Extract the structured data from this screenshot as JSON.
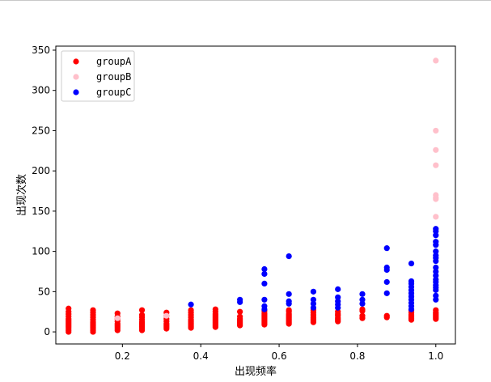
{
  "chart_data": {
    "type": "scatter",
    "title": "",
    "xlabel": "出现频率",
    "ylabel": "出现次数",
    "xlim": [
      0.03,
      1.05
    ],
    "ylim": [
      -15,
      355
    ],
    "xticks": [
      0.2,
      0.4,
      0.6,
      0.8,
      1.0
    ],
    "xtick_labels": [
      "0.2",
      "0.4",
      "0.6",
      "0.8",
      "1.0"
    ],
    "yticks": [
      0,
      50,
      100,
      150,
      200,
      250,
      300,
      350
    ],
    "ytick_labels": [
      "0",
      "50",
      "100",
      "150",
      "200",
      "250",
      "300",
      "350"
    ],
    "grid": false,
    "legend_position": "top-left",
    "series": [
      {
        "name": "groupA",
        "color": "#ff0000",
        "points": [
          [
            0.0625,
            0
          ],
          [
            0.0625,
            2
          ],
          [
            0.0625,
            4
          ],
          [
            0.0625,
            6
          ],
          [
            0.0625,
            8
          ],
          [
            0.0625,
            10
          ],
          [
            0.0625,
            12
          ],
          [
            0.0625,
            14
          ],
          [
            0.0625,
            16
          ],
          [
            0.0625,
            19
          ],
          [
            0.0625,
            22
          ],
          [
            0.0625,
            25
          ],
          [
            0.0625,
            29
          ],
          [
            0.125,
            0
          ],
          [
            0.125,
            2
          ],
          [
            0.125,
            4
          ],
          [
            0.125,
            6
          ],
          [
            0.125,
            8
          ],
          [
            0.125,
            10
          ],
          [
            0.125,
            12
          ],
          [
            0.125,
            15
          ],
          [
            0.125,
            18
          ],
          [
            0.125,
            21
          ],
          [
            0.125,
            24
          ],
          [
            0.125,
            27
          ],
          [
            0.1875,
            2
          ],
          [
            0.1875,
            4
          ],
          [
            0.1875,
            6
          ],
          [
            0.1875,
            8
          ],
          [
            0.1875,
            10
          ],
          [
            0.1875,
            13
          ],
          [
            0.1875,
            16
          ],
          [
            0.1875,
            19
          ],
          [
            0.1875,
            23
          ],
          [
            0.25,
            2
          ],
          [
            0.25,
            4
          ],
          [
            0.25,
            6
          ],
          [
            0.25,
            8
          ],
          [
            0.25,
            10
          ],
          [
            0.25,
            12
          ],
          [
            0.25,
            15
          ],
          [
            0.25,
            18
          ],
          [
            0.25,
            21
          ],
          [
            0.25,
            27
          ],
          [
            0.3125,
            4
          ],
          [
            0.3125,
            6
          ],
          [
            0.3125,
            8
          ],
          [
            0.3125,
            10
          ],
          [
            0.3125,
            13
          ],
          [
            0.3125,
            16
          ],
          [
            0.3125,
            20
          ],
          [
            0.3125,
            24
          ],
          [
            0.375,
            5
          ],
          [
            0.375,
            7
          ],
          [
            0.375,
            9
          ],
          [
            0.375,
            11
          ],
          [
            0.375,
            13
          ],
          [
            0.375,
            15
          ],
          [
            0.375,
            18
          ],
          [
            0.375,
            21
          ],
          [
            0.375,
            24
          ],
          [
            0.375,
            27
          ],
          [
            0.4375,
            6
          ],
          [
            0.4375,
            8
          ],
          [
            0.4375,
            10
          ],
          [
            0.4375,
            12
          ],
          [
            0.4375,
            14
          ],
          [
            0.4375,
            16
          ],
          [
            0.4375,
            18
          ],
          [
            0.4375,
            20
          ],
          [
            0.4375,
            22
          ],
          [
            0.4375,
            25
          ],
          [
            0.4375,
            28
          ],
          [
            0.5,
            8
          ],
          [
            0.5,
            10
          ],
          [
            0.5,
            12
          ],
          [
            0.5,
            14
          ],
          [
            0.5,
            16
          ],
          [
            0.5,
            19
          ],
          [
            0.5,
            25
          ],
          [
            0.5625,
            9
          ],
          [
            0.5625,
            11
          ],
          [
            0.5625,
            13
          ],
          [
            0.5625,
            15
          ],
          [
            0.5625,
            17
          ],
          [
            0.5625,
            19
          ],
          [
            0.5625,
            21
          ],
          [
            0.5625,
            23
          ],
          [
            0.5625,
            26
          ],
          [
            0.625,
            10
          ],
          [
            0.625,
            12
          ],
          [
            0.625,
            14
          ],
          [
            0.625,
            16
          ],
          [
            0.625,
            18
          ],
          [
            0.625,
            20
          ],
          [
            0.625,
            22
          ],
          [
            0.625,
            25
          ],
          [
            0.625,
            27
          ],
          [
            0.6875,
            12
          ],
          [
            0.6875,
            14
          ],
          [
            0.6875,
            16
          ],
          [
            0.6875,
            18
          ],
          [
            0.6875,
            21
          ],
          [
            0.6875,
            24
          ],
          [
            0.6875,
            27
          ],
          [
            0.75,
            13
          ],
          [
            0.75,
            15
          ],
          [
            0.75,
            17
          ],
          [
            0.75,
            20
          ],
          [
            0.75,
            22
          ],
          [
            0.75,
            25
          ],
          [
            0.8125,
            17
          ],
          [
            0.8125,
            20
          ],
          [
            0.8125,
            26
          ],
          [
            0.8125,
            28
          ],
          [
            0.875,
            18
          ],
          [
            0.875,
            20
          ],
          [
            0.9375,
            15
          ],
          [
            0.9375,
            17
          ],
          [
            0.9375,
            19
          ],
          [
            0.9375,
            21
          ],
          [
            0.9375,
            24
          ],
          [
            0.9375,
            27
          ],
          [
            1.0,
            16
          ],
          [
            1.0,
            18
          ],
          [
            1.0,
            20
          ],
          [
            1.0,
            22
          ],
          [
            1.0,
            24
          ],
          [
            1.0,
            27
          ]
        ]
      },
      {
        "name": "groupB",
        "color": "#ffc0cb",
        "points": [
          [
            0.1875,
            17
          ],
          [
            0.3125,
            20
          ],
          [
            1.0,
            143
          ],
          [
            1.0,
            165
          ],
          [
            1.0,
            167
          ],
          [
            1.0,
            170
          ],
          [
            1.0,
            207
          ],
          [
            1.0,
            226
          ],
          [
            1.0,
            250
          ],
          [
            1.0,
            337
          ]
        ]
      },
      {
        "name": "groupC",
        "color": "#0000ff",
        "points": [
          [
            0.375,
            34
          ],
          [
            0.5,
            37
          ],
          [
            0.5,
            40
          ],
          [
            0.5625,
            28
          ],
          [
            0.5625,
            32
          ],
          [
            0.5625,
            40
          ],
          [
            0.5625,
            60
          ],
          [
            0.5625,
            72
          ],
          [
            0.5625,
            78
          ],
          [
            0.625,
            35
          ],
          [
            0.625,
            38
          ],
          [
            0.625,
            47
          ],
          [
            0.625,
            94
          ],
          [
            0.6875,
            30
          ],
          [
            0.6875,
            35
          ],
          [
            0.6875,
            40
          ],
          [
            0.6875,
            50
          ],
          [
            0.75,
            30
          ],
          [
            0.75,
            34
          ],
          [
            0.75,
            38
          ],
          [
            0.75,
            43
          ],
          [
            0.75,
            53
          ],
          [
            0.8125,
            35
          ],
          [
            0.8125,
            40
          ],
          [
            0.8125,
            47
          ],
          [
            0.875,
            48
          ],
          [
            0.875,
            62
          ],
          [
            0.875,
            77
          ],
          [
            0.875,
            80
          ],
          [
            0.875,
            104
          ],
          [
            0.9375,
            28
          ],
          [
            0.9375,
            32
          ],
          [
            0.9375,
            36
          ],
          [
            0.9375,
            40
          ],
          [
            0.9375,
            44
          ],
          [
            0.9375,
            48
          ],
          [
            0.9375,
            52
          ],
          [
            0.9375,
            56
          ],
          [
            0.9375,
            60
          ],
          [
            0.9375,
            63
          ],
          [
            0.9375,
            85
          ],
          [
            1.0,
            40
          ],
          [
            1.0,
            45
          ],
          [
            1.0,
            52
          ],
          [
            1.0,
            55
          ],
          [
            1.0,
            58
          ],
          [
            1.0,
            62
          ],
          [
            1.0,
            65
          ],
          [
            1.0,
            70
          ],
          [
            1.0,
            75
          ],
          [
            1.0,
            80
          ],
          [
            1.0,
            88
          ],
          [
            1.0,
            92
          ],
          [
            1.0,
            95
          ],
          [
            1.0,
            100
          ],
          [
            1.0,
            108
          ],
          [
            1.0,
            112
          ],
          [
            1.0,
            120
          ],
          [
            1.0,
            125
          ],
          [
            1.0,
            128
          ]
        ]
      }
    ]
  }
}
